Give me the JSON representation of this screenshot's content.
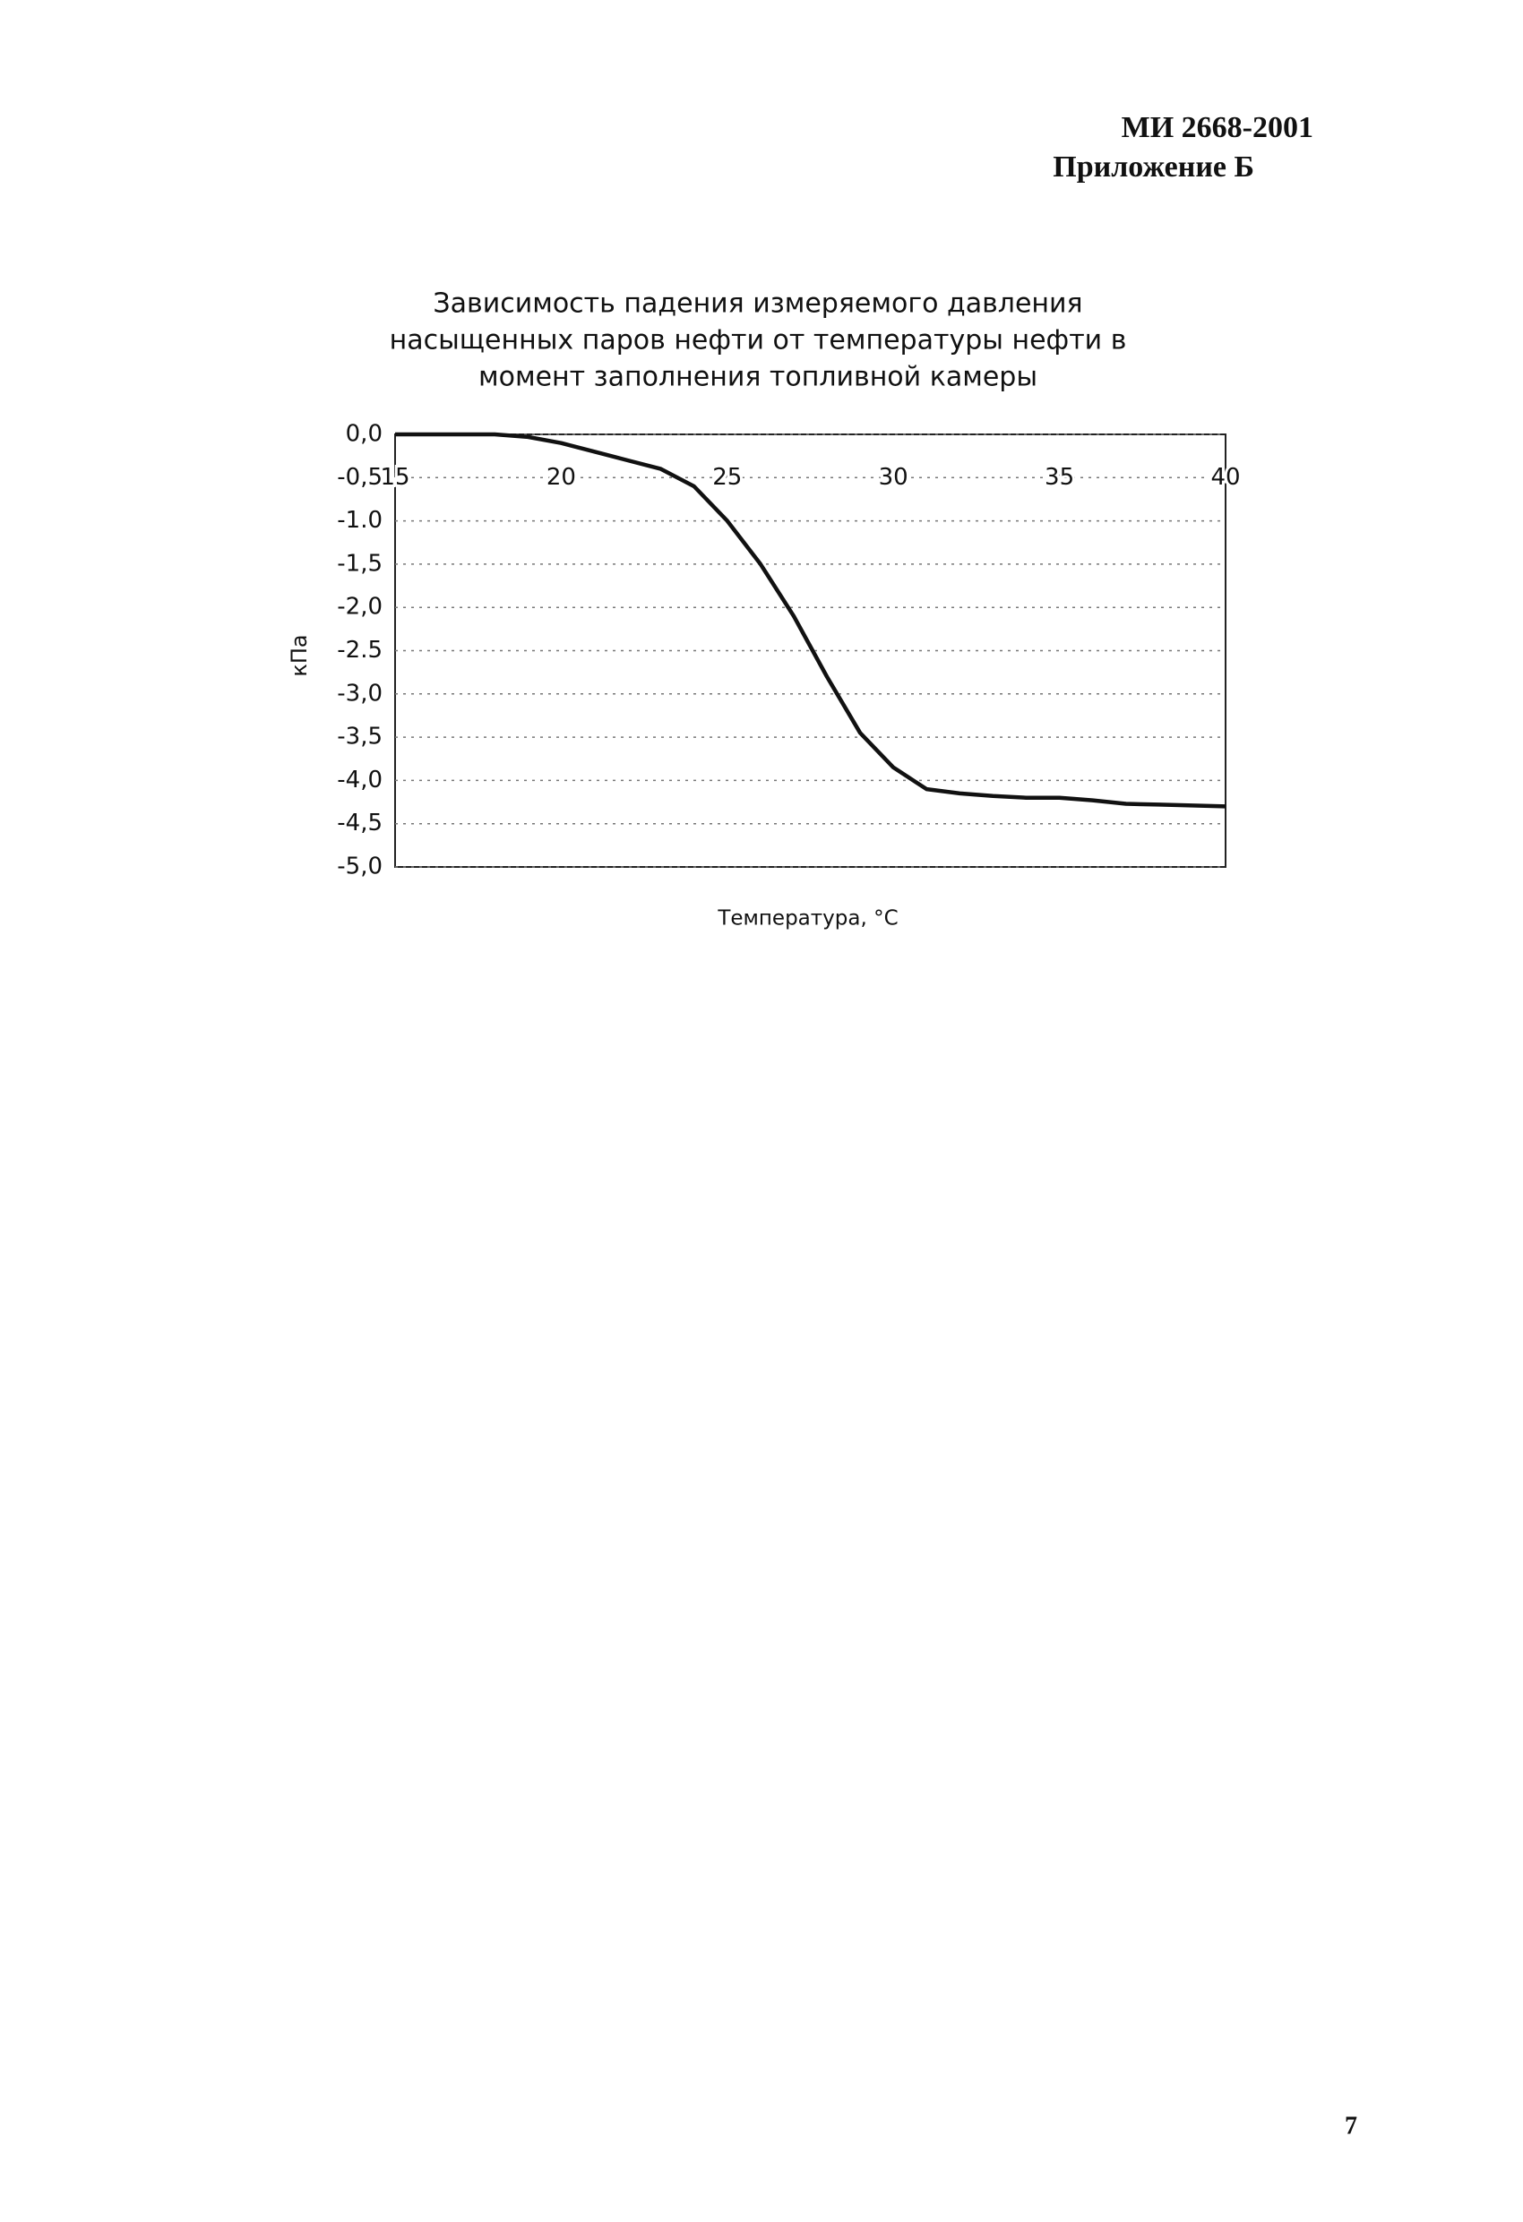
{
  "header": {
    "code": "МИ 2668-2001",
    "appendix": "Приложение Б"
  },
  "chart_data": {
    "type": "line",
    "title": [
      "Зависимость падения измеряемого давления",
      "насыщенных паров нефти от температуры нефти в",
      "момент заполнения топливной камеры"
    ],
    "x_label": "Температура, °С",
    "y_label": "кПа",
    "x": [
      15,
      16,
      17,
      18,
      19,
      20,
      21,
      22,
      23,
      24,
      25,
      26,
      27,
      28,
      29,
      30,
      31,
      32,
      33,
      34,
      35,
      36,
      37,
      38,
      39,
      40
    ],
    "series": [
      {
        "color": "#111111",
        "values": [
          0,
          0,
          0,
          0,
          -0.03,
          -0.1,
          -0.2,
          -0.3,
          -0.4,
          -0.6,
          -1.0,
          -1.5,
          -2.1,
          -2.8,
          -3.45,
          -3.85,
          -4.1,
          -4.15,
          -4.18,
          -4.2,
          -4.2,
          -4.23,
          -4.27,
          -4.28,
          -4.29,
          -4.3
        ]
      }
    ],
    "xlim": [
      15,
      40
    ],
    "ylim": [
      -5,
      0
    ],
    "xticks": [
      15,
      20,
      25,
      30,
      35,
      40
    ],
    "yticks": [
      {
        "value": 0,
        "label": "0,0"
      },
      {
        "value": -0.5,
        "label": "-0,5"
      },
      {
        "value": -1,
        "label": "-1.0"
      },
      {
        "value": -1.5,
        "label": "-1,5"
      },
      {
        "value": -2,
        "label": "-2,0"
      },
      {
        "value": -2.5,
        "label": "-2.5"
      },
      {
        "value": -3,
        "label": "-3,0"
      },
      {
        "value": -3.5,
        "label": "-3,5"
      },
      {
        "value": -4,
        "label": "-4,0"
      },
      {
        "value": -4.5,
        "label": "-4,5"
      },
      {
        "value": -5,
        "label": "-5,0"
      }
    ],
    "x_axis_at": -0.5,
    "grid": true
  },
  "page_number": "7"
}
